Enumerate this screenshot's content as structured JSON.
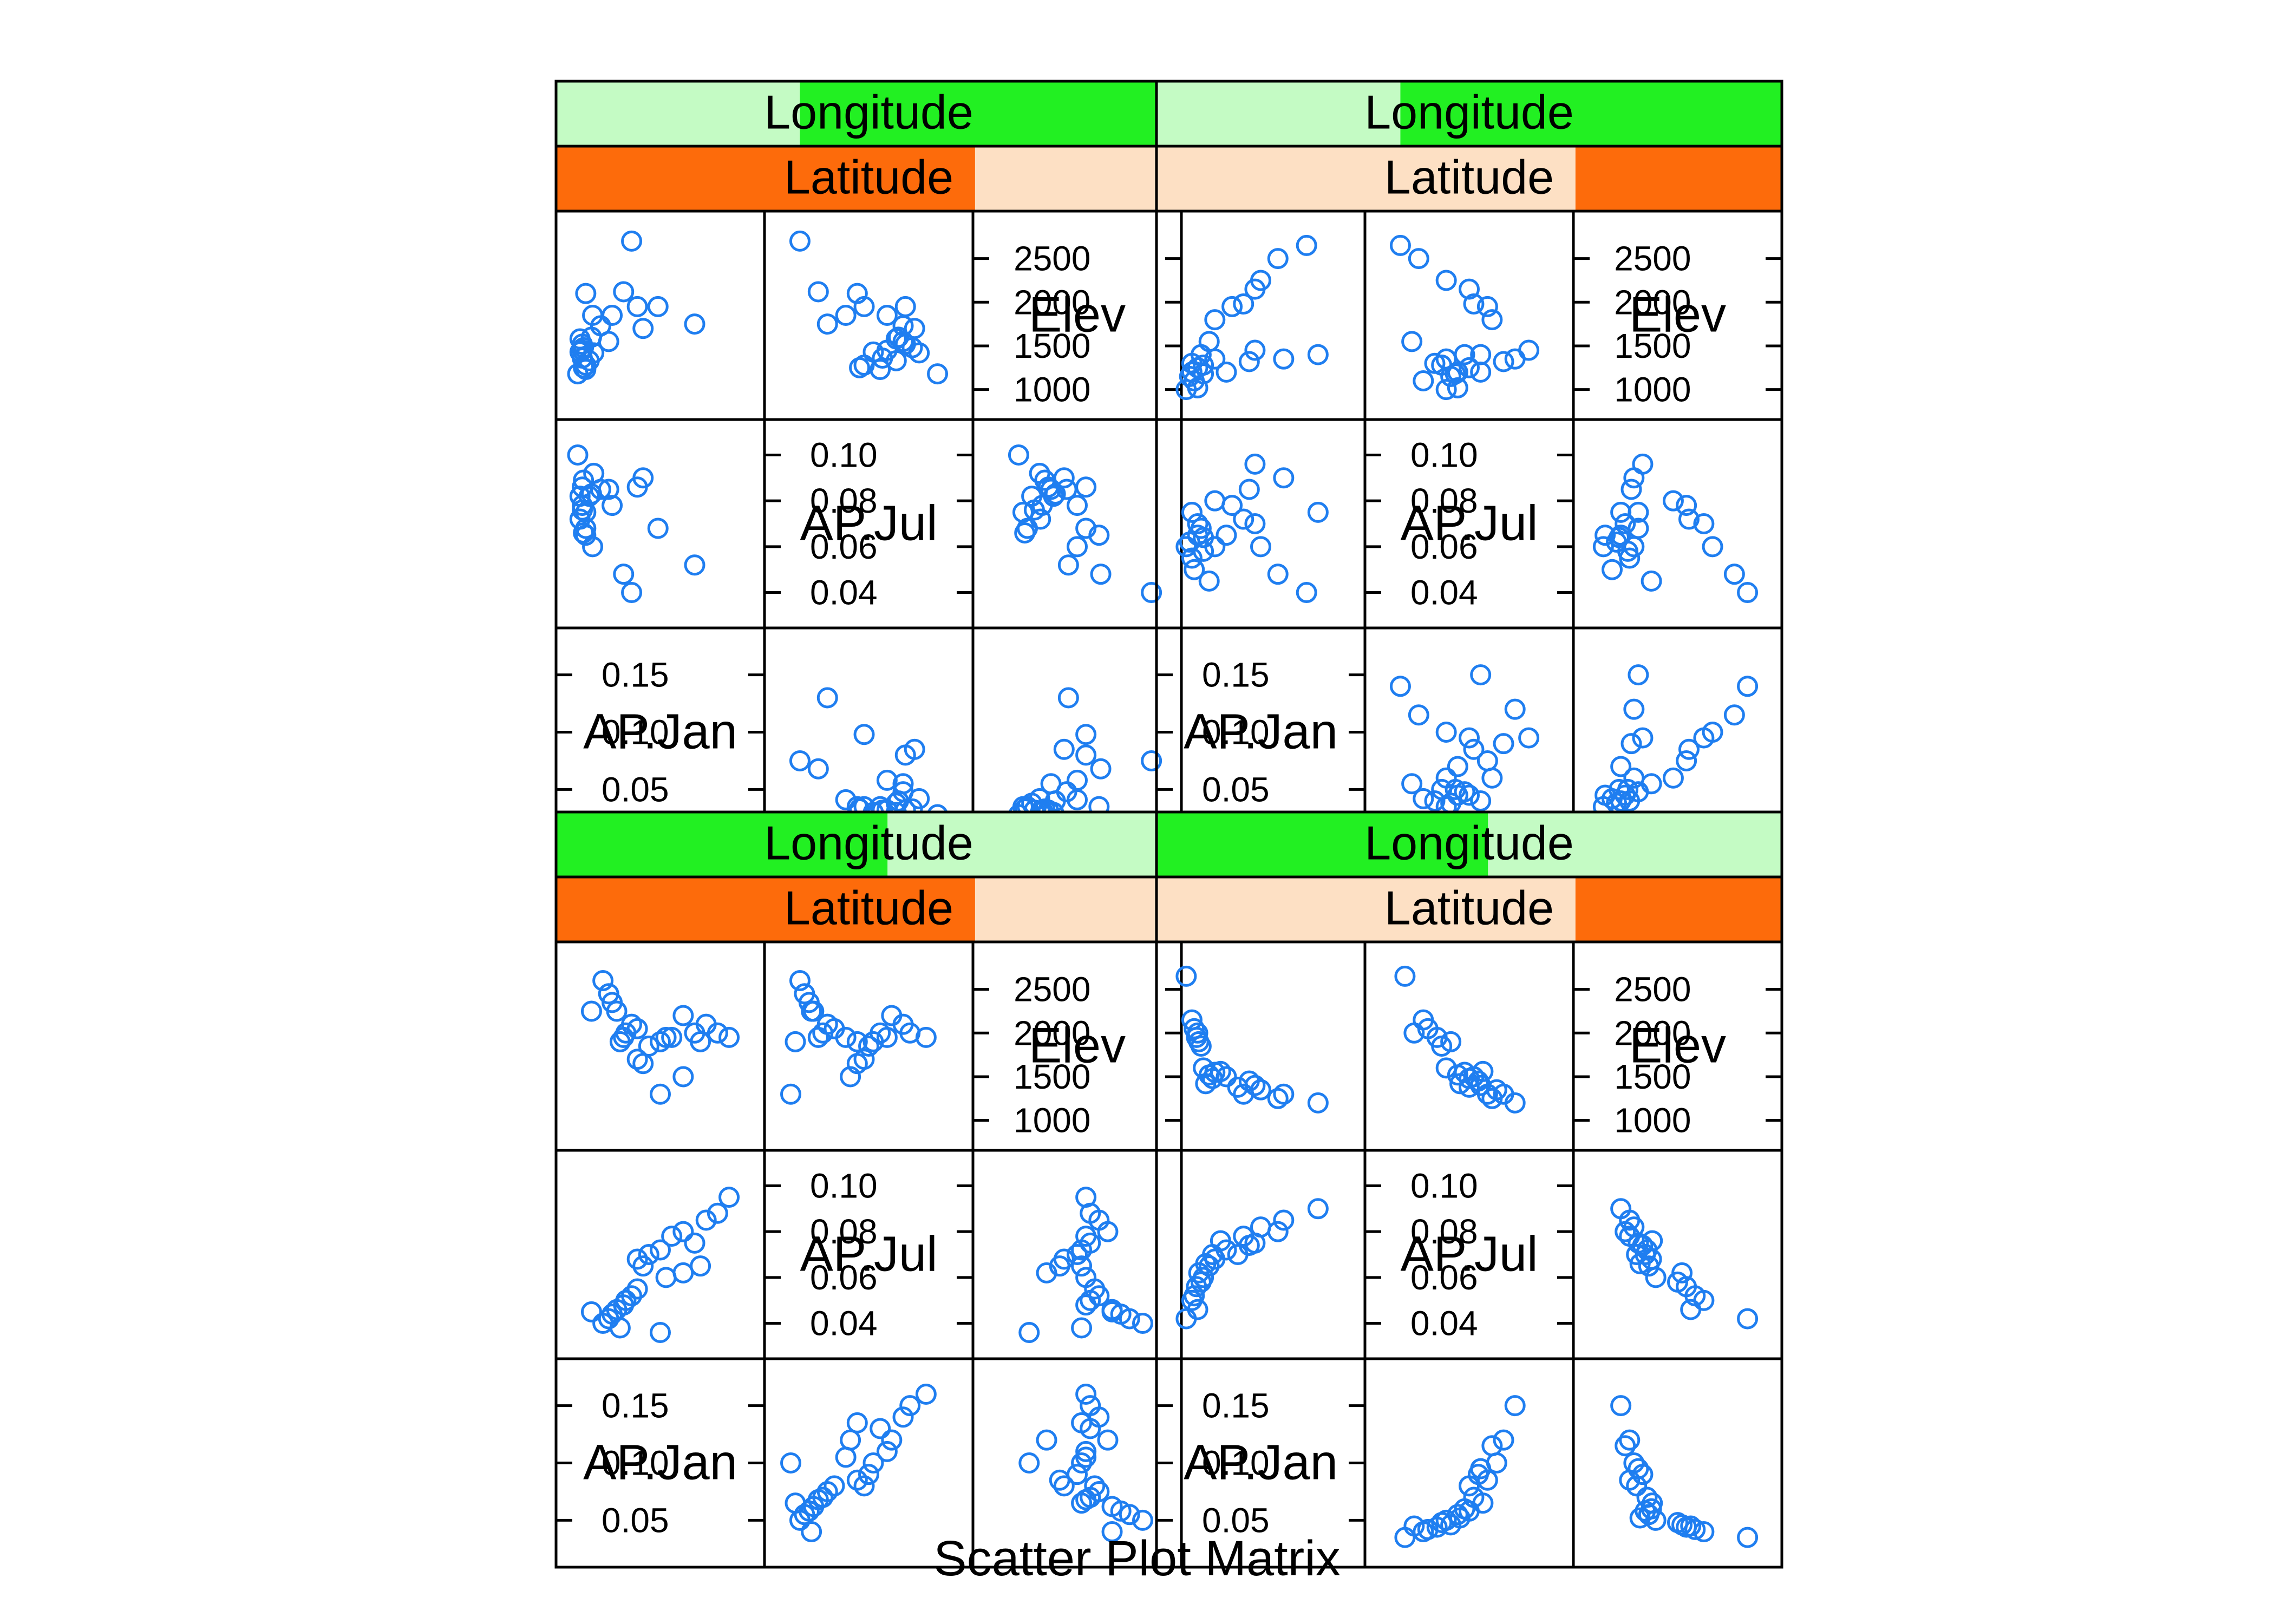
{
  "chart_data": {
    "type": "scatter",
    "title": "",
    "xlabel": "Scatter Plot Matrix",
    "variables": [
      "AP.Jan",
      "AP.Jul",
      "Elev"
    ],
    "variable_labels": [
      "AP.Jan",
      "AP.Jul",
      "Elev"
    ],
    "conditioning": [
      "Longitude",
      "Latitude"
    ],
    "point_color": "#1f7ef0",
    "strip_colors": {
      "longitude_dark": "#22f022",
      "longitude_light": "#c4fbc4",
      "latitude_dark": "#fd6b0b",
      "latitude_light": "#fde0c4"
    },
    "diagonal_ticks": {
      "AP.Jan": {
        "range": [
          0.02,
          0.18
        ],
        "ticks": [
          {
            "v": 0.05,
            "label": "0.05"
          },
          {
            "v": 0.1,
            "label": "0.10"
          },
          {
            "v": 0.15,
            "label": "0.15"
          }
        ],
        "tick_labels_printed": [
          "0.15",
          "0.10",
          "0.05",
          "0.10",
          "0.05"
        ]
      },
      "AP.Jul": {
        "range": [
          0.03,
          0.11
        ],
        "ticks": [
          {
            "v": 0.04,
            "label": "0.04"
          },
          {
            "v": 0.06,
            "label": "0.06"
          },
          {
            "v": 0.08,
            "label": "0.08"
          },
          {
            "v": 0.1,
            "label": "0.10"
          }
        ],
        "tick_labels_printed": [
          "0.10",
          "0.08",
          "0.06",
          "0.04",
          "0.06",
          "0.04"
        ]
      },
      "Elev": {
        "range": [
          800,
          2900
        ],
        "ticks": [
          {
            "v": 1000,
            "label": "1000"
          },
          {
            "v": 1500,
            "label": "1500"
          },
          {
            "v": 2000,
            "label": "2000"
          },
          {
            "v": 2500,
            "label": "2500"
          }
        ],
        "tick_labels_printed": [
          "2500",
          "2000",
          "1000",
          "1500",
          "1000"
        ]
      }
    },
    "panels": [
      {
        "longitude_strip": "left-light",
        "latitude_strip": "left-dark",
        "points": [
          {
            "AP.Jan": 0.04,
            "AP.Jul": 0.083,
            "Elev": 1600
          },
          {
            "AP.Jan": 0.03,
            "AP.Jul": 0.082,
            "Elev": 1580
          },
          {
            "AP.Jan": 0.032,
            "AP.Jul": 0.078,
            "Elev": 1450
          },
          {
            "AP.Jan": 0.03,
            "AP.Jul": 0.072,
            "Elev": 1430
          },
          {
            "AP.Jan": 0.032,
            "AP.Jul": 0.076,
            "Elev": 1360
          },
          {
            "AP.Jan": 0.035,
            "AP.Jul": 0.068,
            "Elev": 1280
          },
          {
            "AP.Jan": 0.033,
            "AP.Jul": 0.066,
            "Elev": 1250
          },
          {
            "AP.Jan": 0.038,
            "AP.Jul": 0.082,
            "Elev": 1330
          },
          {
            "AP.Jan": 0.032,
            "AP.Jul": 0.086,
            "Elev": 1520
          },
          {
            "AP.Jan": 0.033,
            "AP.Jul": 0.089,
            "Elev": 1480
          },
          {
            "AP.Jan": 0.042,
            "AP.Jul": 0.092,
            "Elev": 1420
          },
          {
            "AP.Jan": 0.035,
            "AP.Jul": 0.075,
            "Elev": 1230
          },
          {
            "AP.Jan": 0.028,
            "AP.Jul": 0.1,
            "Elev": 1180
          },
          {
            "AP.Jan": 0.041,
            "AP.Jul": 0.06,
            "Elev": 1850
          },
          {
            "AP.Jan": 0.085,
            "AP.Jul": 0.09,
            "Elev": 1700
          },
          {
            "AP.Jan": 0.055,
            "AP.Jul": 0.085,
            "Elev": 1550
          },
          {
            "AP.Jan": 0.08,
            "AP.Jul": 0.086,
            "Elev": 1950
          },
          {
            "AP.Jan": 0.098,
            "AP.Jul": 0.068,
            "Elev": 1950
          },
          {
            "AP.Jan": 0.13,
            "AP.Jul": 0.052,
            "Elev": 1750
          },
          {
            "AP.Jan": 0.048,
            "AP.Jul": 0.085,
            "Elev": 1730
          },
          {
            "AP.Jan": 0.068,
            "AP.Jul": 0.048,
            "Elev": 2120
          },
          {
            "AP.Jan": 0.058,
            "AP.Jul": 0.078,
            "Elev": 1850
          },
          {
            "AP.Jan": 0.075,
            "AP.Jul": 0.04,
            "Elev": 2700
          },
          {
            "AP.Jan": 0.035,
            "AP.Jul": 0.065,
            "Elev": 2100
          }
        ]
      },
      {
        "longitude_strip": "left-light",
        "latitude_strip": "right-dark",
        "points": [
          {
            "AP.Jan": 0.15,
            "AP.Jul": 0.075,
            "Elev": 1400
          },
          {
            "AP.Jan": 0.12,
            "AP.Jul": 0.09,
            "Elev": 1350
          },
          {
            "AP.Jan": 0.09,
            "AP.Jul": 0.085,
            "Elev": 1320
          },
          {
            "AP.Jan": 0.095,
            "AP.Jul": 0.096,
            "Elev": 1450
          },
          {
            "AP.Jan": 0.07,
            "AP.Jul": 0.065,
            "Elev": 1200
          },
          {
            "AP.Jan": 0.06,
            "AP.Jul": 0.06,
            "Elev": 1350
          },
          {
            "AP.Jan": 0.05,
            "AP.Jul": 0.058,
            "Elev": 1280
          },
          {
            "AP.Jan": 0.045,
            "AP.Jul": 0.07,
            "Elev": 1250
          },
          {
            "AP.Jan": 0.042,
            "AP.Jul": 0.05,
            "Elev": 1100
          },
          {
            "AP.Jan": 0.04,
            "AP.Jul": 0.055,
            "Elev": 1300
          },
          {
            "AP.Jan": 0.038,
            "AP.Jul": 0.062,
            "Elev": 1150
          },
          {
            "AP.Jan": 0.048,
            "AP.Jul": 0.068,
            "Elev": 1400
          },
          {
            "AP.Jan": 0.055,
            "AP.Jul": 0.045,
            "Elev": 1550
          },
          {
            "AP.Jan": 0.06,
            "AP.Jul": 0.08,
            "Elev": 1800
          },
          {
            "AP.Jan": 0.075,
            "AP.Jul": 0.078,
            "Elev": 1950
          },
          {
            "AP.Jan": 0.085,
            "AP.Jul": 0.072,
            "Elev": 1980
          },
          {
            "AP.Jan": 0.095,
            "AP.Jul": 0.07,
            "Elev": 2150
          },
          {
            "AP.Jan": 0.1,
            "AP.Jul": 0.06,
            "Elev": 2250
          },
          {
            "AP.Jan": 0.115,
            "AP.Jul": 0.048,
            "Elev": 2500
          },
          {
            "AP.Jan": 0.14,
            "AP.Jul": 0.04,
            "Elev": 2650
          },
          {
            "AP.Jan": 0.045,
            "AP.Jul": 0.065,
            "Elev": 1020
          },
          {
            "AP.Jan": 0.035,
            "AP.Jul": 0.06,
            "Elev": 1000
          },
          {
            "AP.Jan": 0.04,
            "AP.Jul": 0.075,
            "Elev": 1200
          },
          {
            "AP.Jan": 0.05,
            "AP.Jul": 0.064,
            "Elev": 1180
          }
        ]
      },
      {
        "longitude_strip": "right-light",
        "latitude_strip": "left-dark",
        "points": [
          {
            "AP.Jan": 0.16,
            "AP.Jul": 0.095,
            "Elev": 1950
          },
          {
            "AP.Jan": 0.14,
            "AP.Jul": 0.085,
            "Elev": 2100
          },
          {
            "AP.Jan": 0.12,
            "AP.Jul": 0.08,
            "Elev": 2200
          },
          {
            "AP.Jan": 0.13,
            "AP.Jul": 0.075,
            "Elev": 2000
          },
          {
            "AP.Jan": 0.11,
            "AP.Jul": 0.078,
            "Elev": 1950
          },
          {
            "AP.Jan": 0.1,
            "AP.Jul": 0.072,
            "Elev": 1900
          },
          {
            "AP.Jan": 0.09,
            "AP.Jul": 0.07,
            "Elev": 1850
          },
          {
            "AP.Jan": 0.085,
            "AP.Jul": 0.065,
            "Elev": 1650
          },
          {
            "AP.Jan": 0.08,
            "AP.Jul": 0.068,
            "Elev": 1700
          },
          {
            "AP.Jan": 0.12,
            "AP.Jul": 0.062,
            "Elev": 1500
          },
          {
            "AP.Jan": 0.135,
            "AP.Jul": 0.065,
            "Elev": 1900
          },
          {
            "AP.Jan": 0.105,
            "AP.Jul": 0.06,
            "Elev": 1950
          },
          {
            "AP.Jan": 0.08,
            "AP.Jul": 0.055,
            "Elev": 2050
          },
          {
            "AP.Jan": 0.075,
            "AP.Jul": 0.052,
            "Elev": 2100
          },
          {
            "AP.Jan": 0.07,
            "AP.Jul": 0.05,
            "Elev": 2000
          },
          {
            "AP.Jan": 0.068,
            "AP.Jul": 0.048,
            "Elev": 1950
          },
          {
            "AP.Jan": 0.062,
            "AP.Jul": 0.046,
            "Elev": 2250
          },
          {
            "AP.Jan": 0.058,
            "AP.Jul": 0.044,
            "Elev": 2350
          },
          {
            "AP.Jan": 0.055,
            "AP.Jul": 0.042,
            "Elev": 2450
          },
          {
            "AP.Jan": 0.05,
            "AP.Jul": 0.04,
            "Elev": 2600
          },
          {
            "AP.Jan": 0.065,
            "AP.Jul": 0.038,
            "Elev": 1900
          },
          {
            "AP.Jan": 0.1,
            "AP.Jul": 0.036,
            "Elev": 1300
          },
          {
            "AP.Jan": 0.04,
            "AP.Jul": 0.045,
            "Elev": 2250
          },
          {
            "AP.Jan": 0.15,
            "AP.Jul": 0.088,
            "Elev": 2000
          }
        ]
      },
      {
        "longitude_strip": "right-light",
        "latitude_strip": "right-dark",
        "points": [
          {
            "AP.Jan": 0.15,
            "AP.Jul": 0.09,
            "Elev": 1200
          },
          {
            "AP.Jan": 0.12,
            "AP.Jul": 0.085,
            "Elev": 1300
          },
          {
            "AP.Jan": 0.115,
            "AP.Jul": 0.08,
            "Elev": 1250
          },
          {
            "AP.Jan": 0.1,
            "AP.Jul": 0.082,
            "Elev": 1350
          },
          {
            "AP.Jan": 0.085,
            "AP.Jul": 0.078,
            "Elev": 1300
          },
          {
            "AP.Jan": 0.095,
            "AP.Jul": 0.075,
            "Elev": 1400
          },
          {
            "AP.Jan": 0.09,
            "AP.Jul": 0.074,
            "Elev": 1450
          },
          {
            "AP.Jan": 0.08,
            "AP.Jul": 0.07,
            "Elev": 1380
          },
          {
            "AP.Jan": 0.07,
            "AP.Jul": 0.072,
            "Elev": 1500
          },
          {
            "AP.Jan": 0.06,
            "AP.Jul": 0.068,
            "Elev": 1550
          },
          {
            "AP.Jan": 0.055,
            "AP.Jul": 0.065,
            "Elev": 1520
          },
          {
            "AP.Jan": 0.05,
            "AP.Jul": 0.06,
            "Elev": 1600
          },
          {
            "AP.Jan": 0.048,
            "AP.Jul": 0.058,
            "Elev": 1850
          },
          {
            "AP.Jan": 0.046,
            "AP.Jul": 0.062,
            "Elev": 1900
          },
          {
            "AP.Jan": 0.044,
            "AP.Jul": 0.056,
            "Elev": 1950
          },
          {
            "AP.Jan": 0.042,
            "AP.Jul": 0.052,
            "Elev": 2050
          },
          {
            "AP.Jan": 0.04,
            "AP.Jul": 0.05,
            "Elev": 2150
          },
          {
            "AP.Jan": 0.045,
            "AP.Jul": 0.046,
            "Elev": 2000
          },
          {
            "AP.Jan": 0.035,
            "AP.Jul": 0.042,
            "Elev": 2650
          },
          {
            "AP.Jan": 0.052,
            "AP.Jul": 0.066,
            "Elev": 1420
          },
          {
            "AP.Jan": 0.058,
            "AP.Jul": 0.07,
            "Elev": 1480
          },
          {
            "AP.Jan": 0.065,
            "AP.Jul": 0.076,
            "Elev": 1560
          }
        ]
      }
    ]
  }
}
